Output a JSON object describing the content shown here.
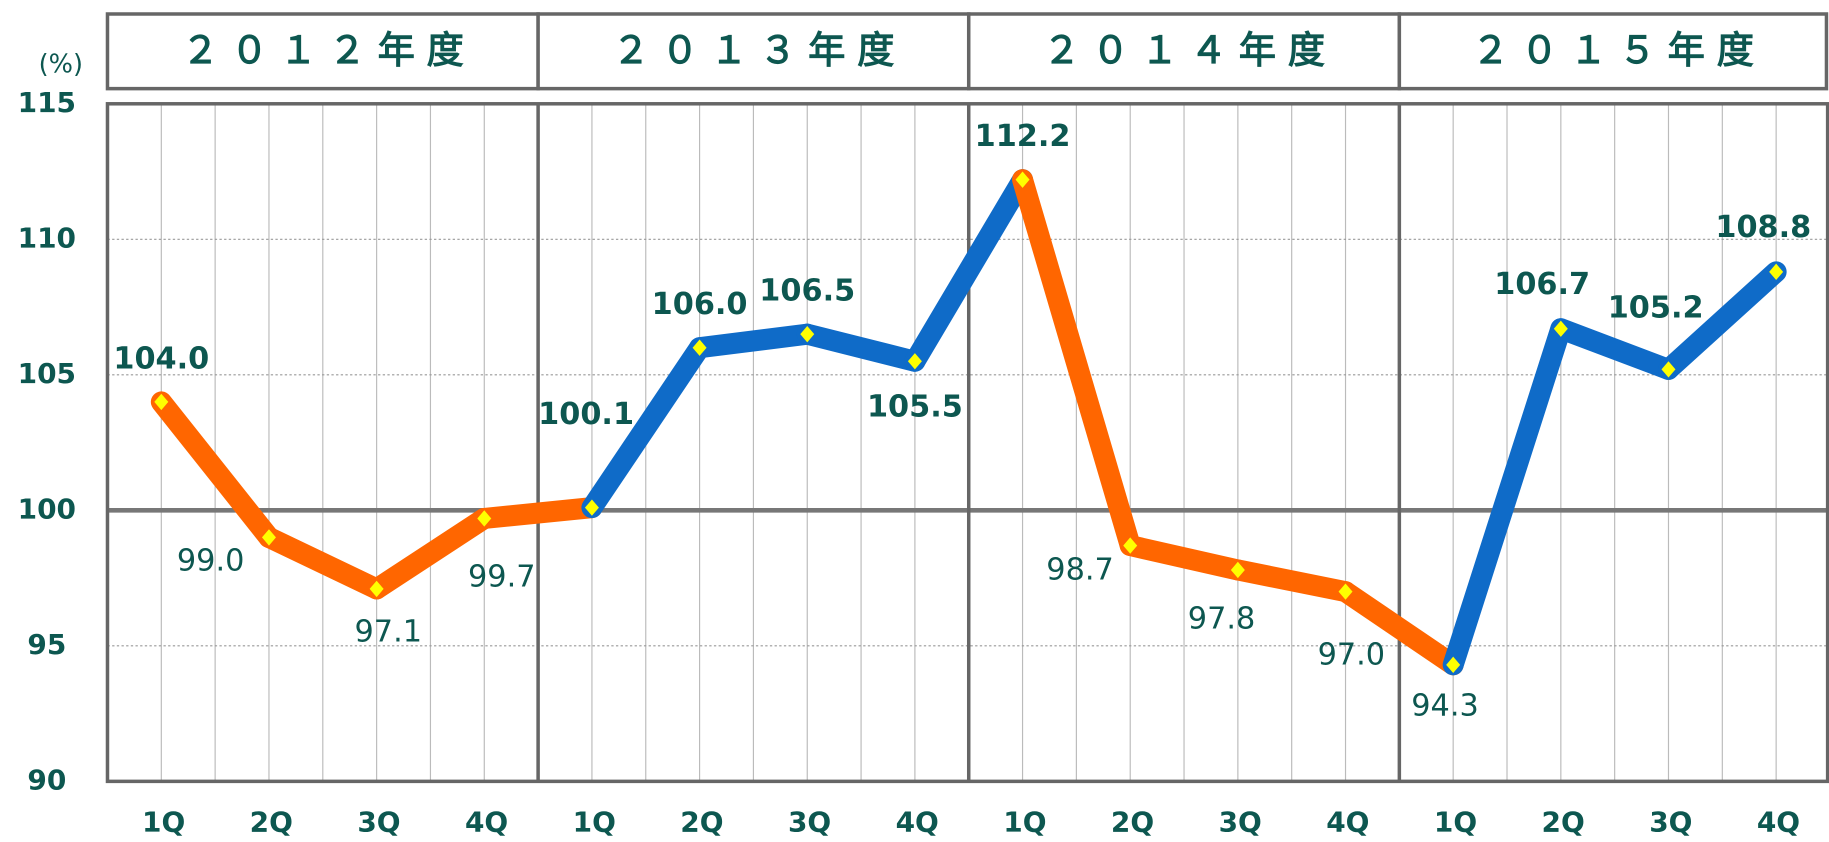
{
  "chart_data": {
    "type": "line",
    "y_label": "(%)",
    "groups": [
      "２０１２年度",
      "２０１３年度",
      "２０１４年度",
      "２０１５年度"
    ],
    "categories": [
      "1Q",
      "2Q",
      "3Q",
      "4Q",
      "1Q",
      "2Q",
      "3Q",
      "4Q",
      "1Q",
      "2Q",
      "3Q",
      "4Q",
      "1Q",
      "2Q",
      "3Q",
      "4Q"
    ],
    "values": [
      104.0,
      99.0,
      97.1,
      99.7,
      100.1,
      106.0,
      106.5,
      105.5,
      112.2,
      98.7,
      97.8,
      97.0,
      94.3,
      106.7,
      105.2,
      108.8
    ],
    "value_labels": [
      "104.0",
      "99.0",
      "97.1",
      "99.7",
      "100.1",
      "106.0",
      "106.5",
      "105.5",
      "112.2",
      "98.7",
      "97.8",
      "97.0",
      "94.3",
      "106.7",
      "105.2",
      "108.8"
    ],
    "segment_colors": [
      "#ff6600",
      "#ff6600",
      "#ff6600",
      "#ff6600",
      "#0f6bc8",
      "#0f6bc8",
      "#0f6bc8",
      "#0f6bc8",
      "#ff6600",
      "#ff6600",
      "#ff6600",
      "#ff6600",
      "#0f6bc8",
      "#0f6bc8",
      "#0f6bc8"
    ],
    "marker_color": "#ffff00",
    "reference": 100,
    "ylim": [
      90,
      115
    ],
    "yticks": [
      90,
      95,
      100,
      105,
      110,
      115
    ],
    "grid": true
  }
}
